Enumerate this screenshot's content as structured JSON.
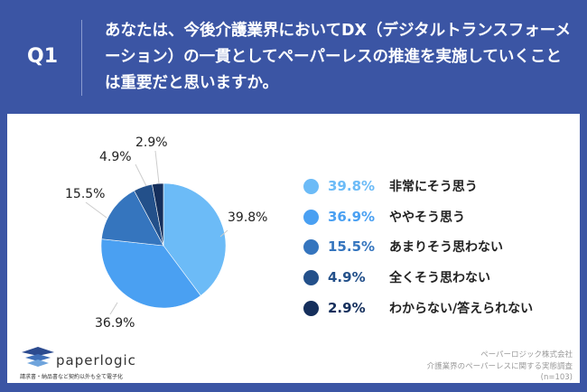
{
  "header": {
    "q_label": "Q1",
    "question": "あなたは、今後介護業界においてDX（デジタルトランスフォーメーション）の一貫としてペーパーレスの推進を実施していくことは重要だと思いますか。"
  },
  "chart_data": {
    "type": "pie",
    "categories": [
      "非常にそう思う",
      "ややそう思う",
      "あまりそう思わない",
      "全くそう思わない",
      "わからない/答えられない"
    ],
    "values": [
      39.8,
      36.9,
      15.5,
      4.9,
      2.9
    ],
    "labels": [
      "39.8%",
      "36.9%",
      "15.5%",
      "4.9%",
      "2.9%"
    ],
    "colors": [
      "#6cbbf7",
      "#4aa0f2",
      "#3575be",
      "#23508a",
      "#152f5c"
    ],
    "start": "top",
    "direction": "clockwise",
    "legend_placement": "right"
  },
  "footer": {
    "logo_text": "paperlogic",
    "tagline": "請求書・納品書など契約以外も全て電子化",
    "company": "ペーパーロジック株式会社",
    "survey": "介護業界のペーパーレスに関する実態調査",
    "n": "(n=103)"
  }
}
